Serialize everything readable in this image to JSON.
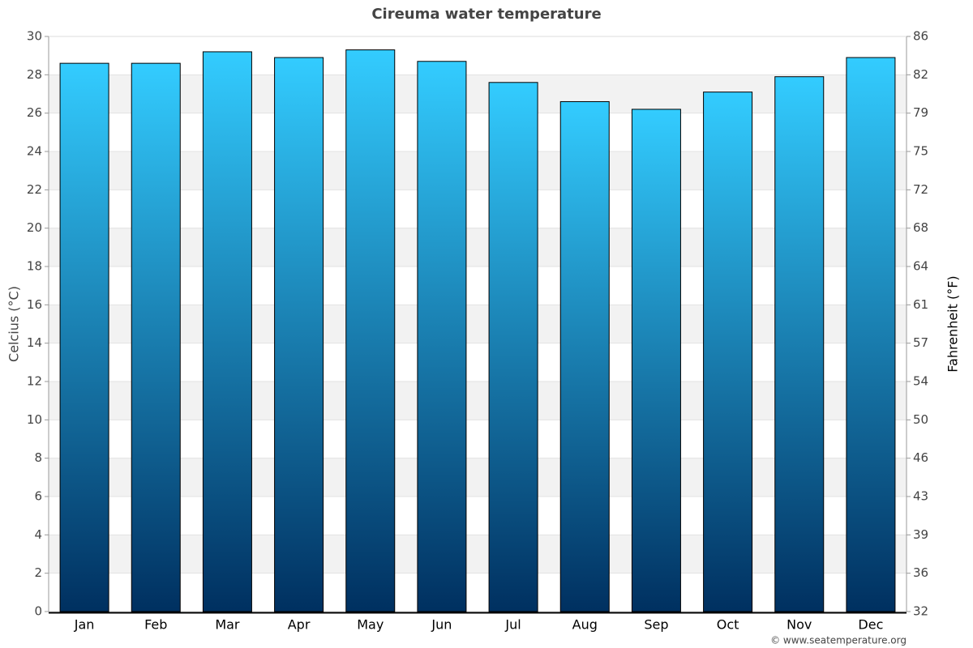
{
  "chart_data": {
    "type": "bar",
    "title": "Cireuma water temperature",
    "categories": [
      "Jan",
      "Feb",
      "Mar",
      "Apr",
      "May",
      "Jun",
      "Jul",
      "Aug",
      "Sep",
      "Oct",
      "Nov",
      "Dec"
    ],
    "values": [
      28.6,
      28.6,
      29.2,
      28.9,
      29.3,
      28.7,
      27.6,
      26.6,
      26.2,
      27.1,
      27.9,
      28.9
    ],
    "color_top": "#33ccff",
    "color_bottom": "#003060",
    "ylabel": "Celcius (°C)",
    "y2label": "Fahrenheit (°F)",
    "ylim": [
      0,
      30
    ],
    "yticks": [
      0,
      2,
      4,
      6,
      8,
      10,
      12,
      14,
      16,
      18,
      20,
      22,
      24,
      26,
      28,
      30
    ],
    "y2lim": [
      32,
      86
    ],
    "y2ticks": [
      32,
      {
        "value": 35.6,
        "label": "36"
      },
      {
        "value": 39.2,
        "label": "39"
      },
      {
        "value": 42.8,
        "label": "43"
      },
      {
        "value": 46.4,
        "label": "46"
      },
      50,
      {
        "value": 53.6,
        "label": "54"
      },
      {
        "value": 57.2,
        "label": "57"
      },
      {
        "value": 60.8,
        "label": "61"
      },
      {
        "value": 64.4,
        "label": "64"
      },
      68,
      {
        "value": 71.6,
        "label": "72"
      },
      {
        "value": 75.2,
        "label": "75"
      },
      {
        "value": 78.8,
        "label": "79"
      },
      {
        "value": 82.4,
        "label": "82"
      },
      86
    ],
    "grid": true,
    "credit": "© www.seatemperature.org"
  }
}
